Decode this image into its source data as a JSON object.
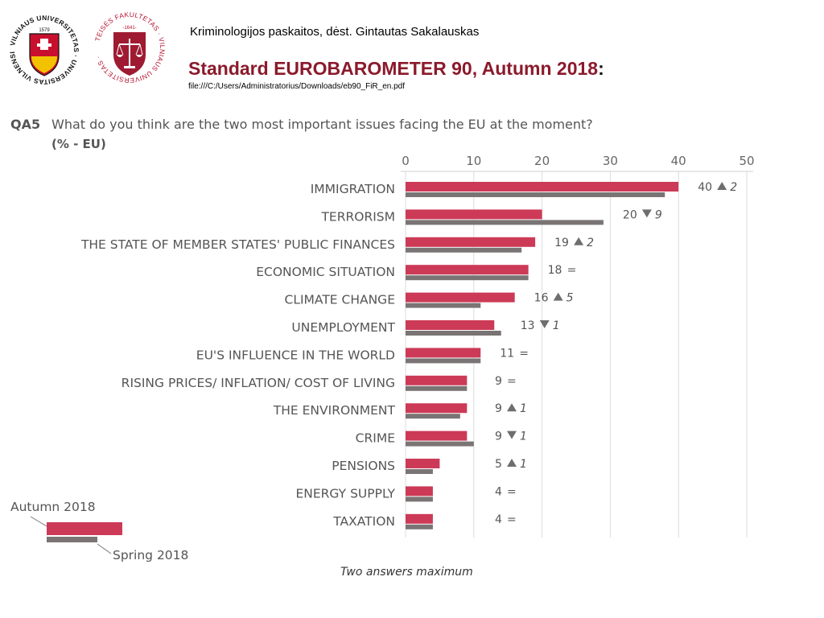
{
  "header": {
    "subtitle": "Kriminologijos paskaitos, dėst. Gintautas Sakalauskas",
    "title": "Standard EUROBAROMETER 90, Autumn 2018",
    "title_suffix": ":",
    "filepath": "file:///C:/Users/Administratorius/Downloads/eb90_FiR_en.pdf"
  },
  "logos": {
    "vu_ring_text": "VILNIAUS UNIVERSITETAS · UNIVERSITAS VILNENSIS ·",
    "vu_year": "1579",
    "tf_ring_text": "TEISĖS FAKULTETAS · VILNIAUS UNIVERSITETAS ·",
    "tf_year": "-1641-"
  },
  "question": {
    "code": "QA5",
    "text": "What do you think are the two most important issues facing the EU at the moment?",
    "unit": "(% - EU)"
  },
  "colors": {
    "autumn": "#cc3a57",
    "spring": "#7a7475",
    "up_arrow": "#6e6e6e",
    "down_arrow": "#6e6e6e",
    "title_red": "#8b1a2c"
  },
  "chart_data": {
    "type": "bar",
    "orientation": "horizontal",
    "xlim": [
      0,
      50
    ],
    "x_ticks": [
      "0",
      "10",
      "20",
      "30",
      "40",
      "50"
    ],
    "categories": [
      "IMMIGRATION",
      "TERRORISM",
      "THE STATE OF MEMBER STATES' PUBLIC FINANCES",
      "ECONOMIC SITUATION",
      "CLIMATE CHANGE",
      "UNEMPLOYMENT",
      "EU'S INFLUENCE IN THE WORLD",
      "RISING PRICES/ INFLATION/ COST OF LIVING",
      "THE ENVIRONMENT",
      "CRIME",
      "PENSIONS",
      "ENERGY SUPPLY",
      "TAXATION"
    ],
    "series": [
      {
        "name": "Autumn 2018",
        "values": [
          40,
          20,
          19,
          18,
          16,
          13,
          11,
          9,
          9,
          9,
          5,
          4,
          4
        ]
      },
      {
        "name": "Spring 2018",
        "values": [
          38,
          29,
          17,
          18,
          11,
          14,
          11,
          9,
          8,
          10,
          4,
          4,
          4
        ]
      }
    ],
    "labels": [
      "40",
      "20",
      "19",
      "18",
      "16",
      "13",
      "11",
      "9",
      "9",
      "9",
      "5",
      "4",
      "4"
    ],
    "change_direction": [
      "up",
      "down",
      "up",
      "equal",
      "up",
      "down",
      "equal",
      "equal",
      "up",
      "down",
      "up",
      "equal",
      "equal"
    ],
    "change_values": [
      "2",
      "9",
      "2",
      "",
      "5",
      "1",
      "",
      "",
      "1",
      "1",
      "1",
      "",
      ""
    ],
    "equal_symbol": "=",
    "legend_position": "bottom-left",
    "note": "Two answers maximum"
  }
}
